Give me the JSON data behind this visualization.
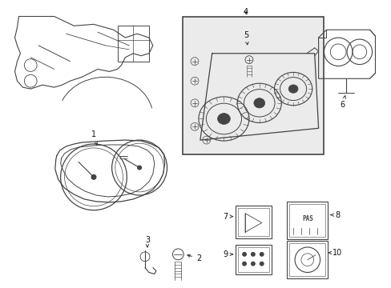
{
  "bg_color": "#ffffff",
  "fig_width": 4.89,
  "fig_height": 3.6,
  "dpi": 100,
  "gray": "#444444",
  "lgray": "#777777",
  "box_fill": "#ebebeb"
}
